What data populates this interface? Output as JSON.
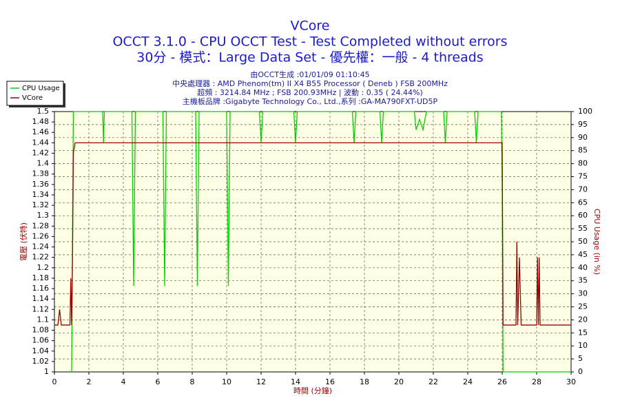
{
  "chart_data": {
    "type": "line",
    "title": "VCore",
    "subtitle": [
      "OCCT 3.1.0 - CPU OCCT Test - Test Completed without errors",
      "30分 - 模式：Large Data Set - 優先權：一般 - 4 threads"
    ],
    "notes": [
      "由OCCT生成 :01/01/09 01:10:45",
      "中央處理器 : AMD Phenom(tm) II X4 B55 Processor ( Deneb ) FSB 200MHz",
      "超頻 : 3214.84 MHz ; FSB 200.93MHz | 波動 : 0.35 ( 24.44%)",
      "主機板品牌 :Gigabyte Technology Co., Ltd.,系列 :GA-MA790FXT-UD5P"
    ],
    "xlabel": "時間 (分鐘)",
    "ylabel": "電壓 (伏特)",
    "y2label": "CPU Usage (in %)",
    "xlim": [
      0,
      30
    ],
    "xticks": [
      0,
      2,
      4,
      6,
      8,
      10,
      12,
      14,
      16,
      18,
      20,
      22,
      24,
      26,
      28,
      30
    ],
    "ylim": [
      1,
      1.5
    ],
    "yticks": [
      1,
      1.02,
      1.04,
      1.06,
      1.08,
      1.1,
      1.12,
      1.14,
      1.16,
      1.18,
      1.2,
      1.22,
      1.24,
      1.26,
      1.28,
      1.3,
      1.32,
      1.34,
      1.36,
      1.38,
      1.4,
      1.42,
      1.44,
      1.46,
      1.48,
      1.5
    ],
    "y2lim": [
      0,
      100
    ],
    "y2ticks": [
      0,
      5,
      10,
      15,
      20,
      25,
      30,
      35,
      40,
      45,
      50,
      55,
      60,
      65,
      70,
      75,
      80,
      85,
      90,
      95,
      100
    ],
    "grid": true,
    "legend": "top-left",
    "series": [
      {
        "name": "CPU Usage",
        "color": "#00d000",
        "axis": "y2",
        "x": [
          1.0,
          1.1,
          2.8,
          2.85,
          2.9,
          4.5,
          4.6,
          4.7,
          6.3,
          6.4,
          6.5,
          8.2,
          8.3,
          8.4,
          10.0,
          10.1,
          10.2,
          11.9,
          12.0,
          12.1,
          13.9,
          14.0,
          14.1,
          17.3,
          17.4,
          17.5,
          18.9,
          19.0,
          19.1,
          20.9,
          21.0,
          21.2,
          21.4,
          21.6,
          22.6,
          22.7,
          22.8,
          24.4,
          24.5,
          24.6,
          25.95,
          26.0,
          26.05,
          30
        ],
        "values": [
          0,
          100,
          100,
          88,
          100,
          100,
          33,
          100,
          100,
          33,
          100,
          100,
          33,
          100,
          100,
          33,
          100,
          100,
          88,
          100,
          100,
          88,
          100,
          100,
          88,
          100,
          100,
          88,
          100,
          100,
          93,
          97,
          93,
          100,
          100,
          88,
          100,
          100,
          88,
          100,
          100,
          70,
          0,
          0
        ]
      },
      {
        "name": "VCore",
        "color": "#990000",
        "axis": "y",
        "x": [
          0,
          0.2,
          0.3,
          0.4,
          0.9,
          0.95,
          1.0,
          1.05,
          1.1,
          1.2,
          26.0,
          26.05,
          26.8,
          26.85,
          26.9,
          27.0,
          27.1,
          28.0,
          28.05,
          28.1,
          28.15,
          28.2,
          30
        ],
        "values": [
          1.09,
          1.09,
          1.12,
          1.09,
          1.09,
          1.18,
          1.09,
          1.22,
          1.42,
          1.44,
          1.44,
          1.09,
          1.09,
          1.25,
          1.09,
          1.22,
          1.09,
          1.09,
          1.22,
          1.09,
          1.22,
          1.09,
          1.09
        ]
      }
    ]
  }
}
